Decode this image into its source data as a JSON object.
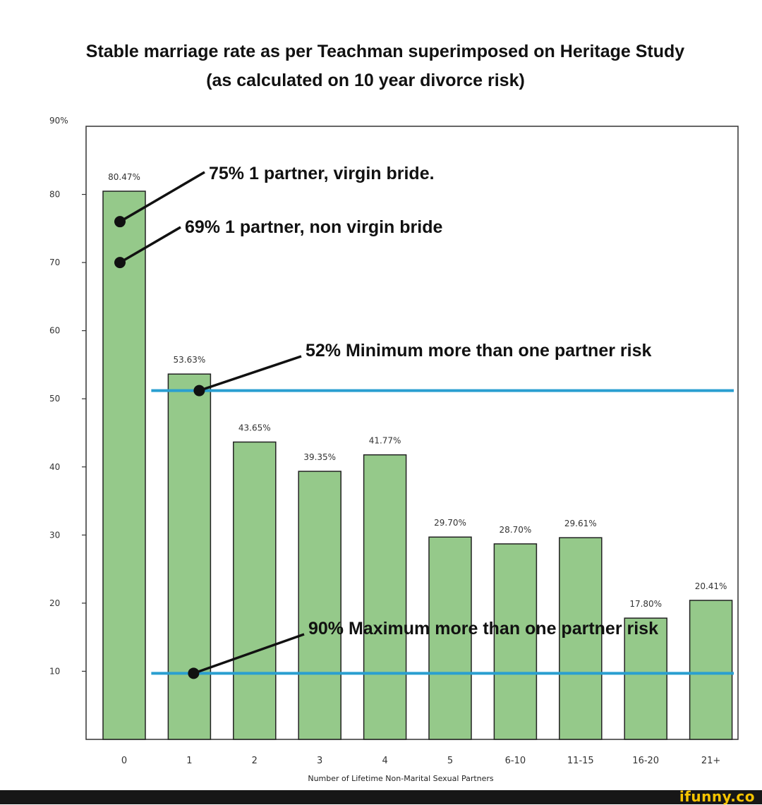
{
  "chart_data": {
    "type": "bar",
    "title": "Stable marriage rate as per Teachman superimposed on Heritage Study",
    "subtitle": "(as calculated on 10 year divorce risk)",
    "xlabel": "Number of Lifetime Non-Marital Sexual Partners",
    "ylabel": "",
    "ylim": [
      0,
      90
    ],
    "yticks": [
      10,
      20,
      30,
      40,
      50,
      60,
      70,
      80
    ],
    "ytick_labels": [
      "10",
      "20",
      "30",
      "40",
      "50",
      "60",
      "70",
      "80"
    ],
    "ytop_label": "90%",
    "categories": [
      "0",
      "1",
      "2",
      "3",
      "4",
      "5",
      "6-10",
      "11-15",
      "16-20",
      "21+"
    ],
    "values": [
      80.47,
      53.63,
      43.65,
      39.35,
      41.77,
      29.7,
      28.7,
      29.61,
      17.8,
      20.41
    ],
    "data_labels": [
      "80.47%",
      "53.63%",
      "43.65%",
      "39.35%",
      "41.77%",
      "29.70%",
      "28.70%",
      "29.61%",
      "17.80%",
      "20.41%"
    ],
    "bar_color": "#95c98a",
    "line_color": "#2a9fd0",
    "grid": false,
    "reference_lines": [
      {
        "y": 51.2,
        "from_category": "1"
      },
      {
        "y": 9.7,
        "from_category": "1"
      }
    ],
    "annotations": [
      {
        "text": "75% 1 partner, virgin bride.",
        "point_category": "0",
        "point_y": 76
      },
      {
        "text": "69%  1 partner, non virgin bride",
        "point_category": "0",
        "point_y": 70
      },
      {
        "text": "52% Minimum more than one partner risk",
        "point_category": "1",
        "point_y": 51.2
      },
      {
        "text": "90% Maximum more than one partner risk",
        "point_category": "1",
        "point_y": 9.7
      }
    ]
  },
  "footer": {
    "brand": "ifunny.co",
    "brand_color": "#f6c400"
  }
}
